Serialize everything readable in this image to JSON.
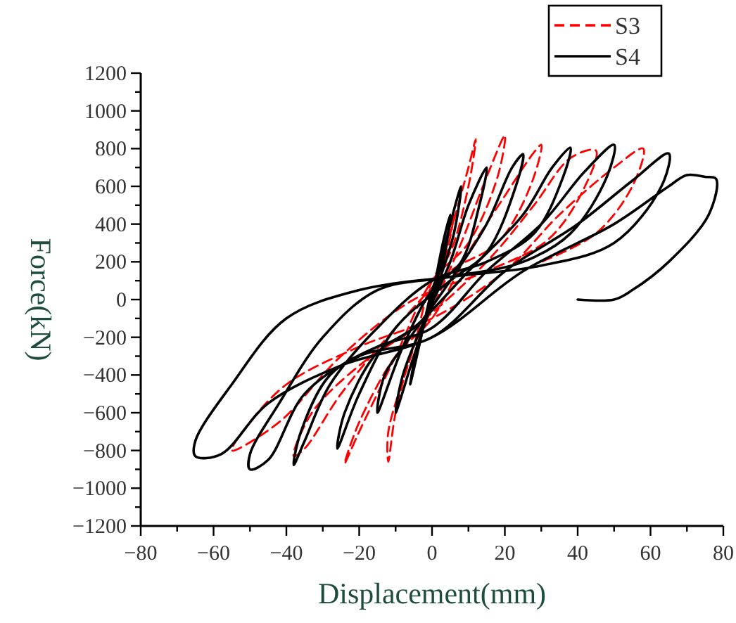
{
  "chart_data": {
    "type": "line",
    "xlabel": "Displacement(mm)",
    "ylabel": "Force(kN)",
    "xlim": [
      -80,
      80
    ],
    "ylim": [
      -1200,
      1200
    ],
    "xticks": [
      -80,
      {
        "value": -70,
        "label": null
      },
      -60,
      {
        "value": -50,
        "label": null
      },
      -40,
      {
        "value": -30,
        "label": null
      },
      -20,
      {
        "value": -10,
        "label": null
      },
      0,
      {
        "value": 10,
        "label": null
      },
      20,
      {
        "value": 30,
        "label": null
      },
      40,
      {
        "value": 50,
        "label": null
      },
      60,
      {
        "value": 70,
        "label": null
      },
      80
    ],
    "yticks": [
      -1200,
      {
        "value": -1100,
        "label": null
      },
      -1000,
      {
        "value": -900,
        "label": null
      },
      -800,
      {
        "value": -700,
        "label": null
      },
      -600,
      {
        "value": -500,
        "label": null
      },
      -400,
      {
        "value": -300,
        "label": null
      },
      -200,
      {
        "value": -100,
        "label": null
      },
      0,
      {
        "value": 100,
        "label": null
      },
      200,
      {
        "value": 300,
        "label": null
      },
      400,
      {
        "value": 500,
        "label": null
      },
      600,
      {
        "value": 700,
        "label": null
      },
      800,
      {
        "value": 900,
        "label": null
      },
      1000,
      {
        "value": 1100,
        "label": null
      },
      1200
    ],
    "legend": "top right",
    "grid": false,
    "marker": "none",
    "series": [
      {
        "name": "S3",
        "color": "#ff0000",
        "line_style": "dashed",
        "x": [
          0,
          3,
          6,
          4,
          0,
          -3,
          -6,
          -4,
          0,
          5,
          10,
          12,
          10,
          5,
          0,
          -5,
          -12,
          -12,
          -10,
          -5,
          0,
          8,
          15,
          20,
          18,
          10,
          0,
          -10,
          -20,
          -24,
          -20,
          -10,
          0,
          10,
          20,
          28,
          30,
          27,
          18,
          5,
          -10,
          -25,
          -35,
          -38,
          -33,
          -20,
          -5,
          15,
          28,
          38,
          45,
          42,
          32,
          15,
          -5,
          -25,
          -42,
          -55,
          -52,
          -40,
          -20,
          0,
          20,
          35,
          50,
          58,
          55,
          45,
          30
        ],
        "values": [
          0,
          250,
          450,
          250,
          50,
          -200,
          -450,
          -250,
          0,
          350,
          700,
          850,
          600,
          250,
          100,
          -250,
          -700,
          -860,
          -600,
          -250,
          -50,
          300,
          650,
          870,
          650,
          300,
          100,
          -300,
          -700,
          -870,
          -650,
          -300,
          -100,
          250,
          550,
          780,
          820,
          600,
          300,
          150,
          -150,
          -500,
          -790,
          -830,
          -600,
          -350,
          -150,
          200,
          500,
          750,
          790,
          600,
          320,
          150,
          0,
          -300,
          -650,
          -800,
          -700,
          -450,
          -250,
          -100,
          150,
          450,
          700,
          800,
          600,
          350,
          200
        ]
      },
      {
        "name": "S4",
        "color": "#000000",
        "line_style": "solid",
        "x": [
          0,
          3,
          5,
          3,
          0,
          -3,
          -6,
          -4,
          0,
          5,
          8,
          6,
          2,
          -5,
          -10,
          -8,
          -3,
          5,
          10,
          15,
          13,
          8,
          0,
          -8,
          -15,
          -13,
          -6,
          5,
          15,
          22,
          25,
          23,
          15,
          5,
          -10,
          -20,
          -26,
          -24,
          -15,
          -5,
          10,
          25,
          33,
          38,
          36,
          28,
          15,
          0,
          -15,
          -28,
          -35,
          -38,
          -36,
          -28,
          -15,
          0,
          15,
          30,
          42,
          50,
          48,
          38,
          25,
          5,
          -15,
          -30,
          -42,
          -50,
          -50,
          -45,
          -35,
          -20,
          0,
          20,
          40,
          55,
          65,
          63,
          50,
          30,
          5,
          -20,
          -40,
          -55,
          -65,
          -65,
          -58,
          -45,
          -25,
          0,
          25,
          50,
          65,
          70,
          75,
          78,
          76,
          65,
          55,
          50,
          40
        ],
        "values": [
          0,
          300,
          450,
          200,
          50,
          -200,
          -450,
          -250,
          0,
          400,
          600,
          350,
          100,
          -300,
          -600,
          -400,
          -150,
          200,
          500,
          700,
          500,
          200,
          50,
          -250,
          -600,
          -400,
          -200,
          100,
          400,
          700,
          770,
          600,
          250,
          100,
          -150,
          -500,
          -790,
          -600,
          -280,
          -150,
          150,
          450,
          700,
          805,
          650,
          350,
          200,
          100,
          -150,
          -450,
          -750,
          -877,
          -700,
          -400,
          -250,
          -150,
          150,
          400,
          680,
          820,
          650,
          350,
          200,
          120,
          50,
          -200,
          -550,
          -820,
          -900,
          -850,
          -500,
          -300,
          -200,
          150,
          400,
          630,
          774,
          600,
          300,
          180,
          120,
          50,
          -100,
          -450,
          -750,
          -830,
          -820,
          -550,
          -350,
          -200,
          150,
          400,
          600,
          660,
          650,
          640,
          450,
          200,
          50,
          0,
          0
        ]
      }
    ]
  }
}
